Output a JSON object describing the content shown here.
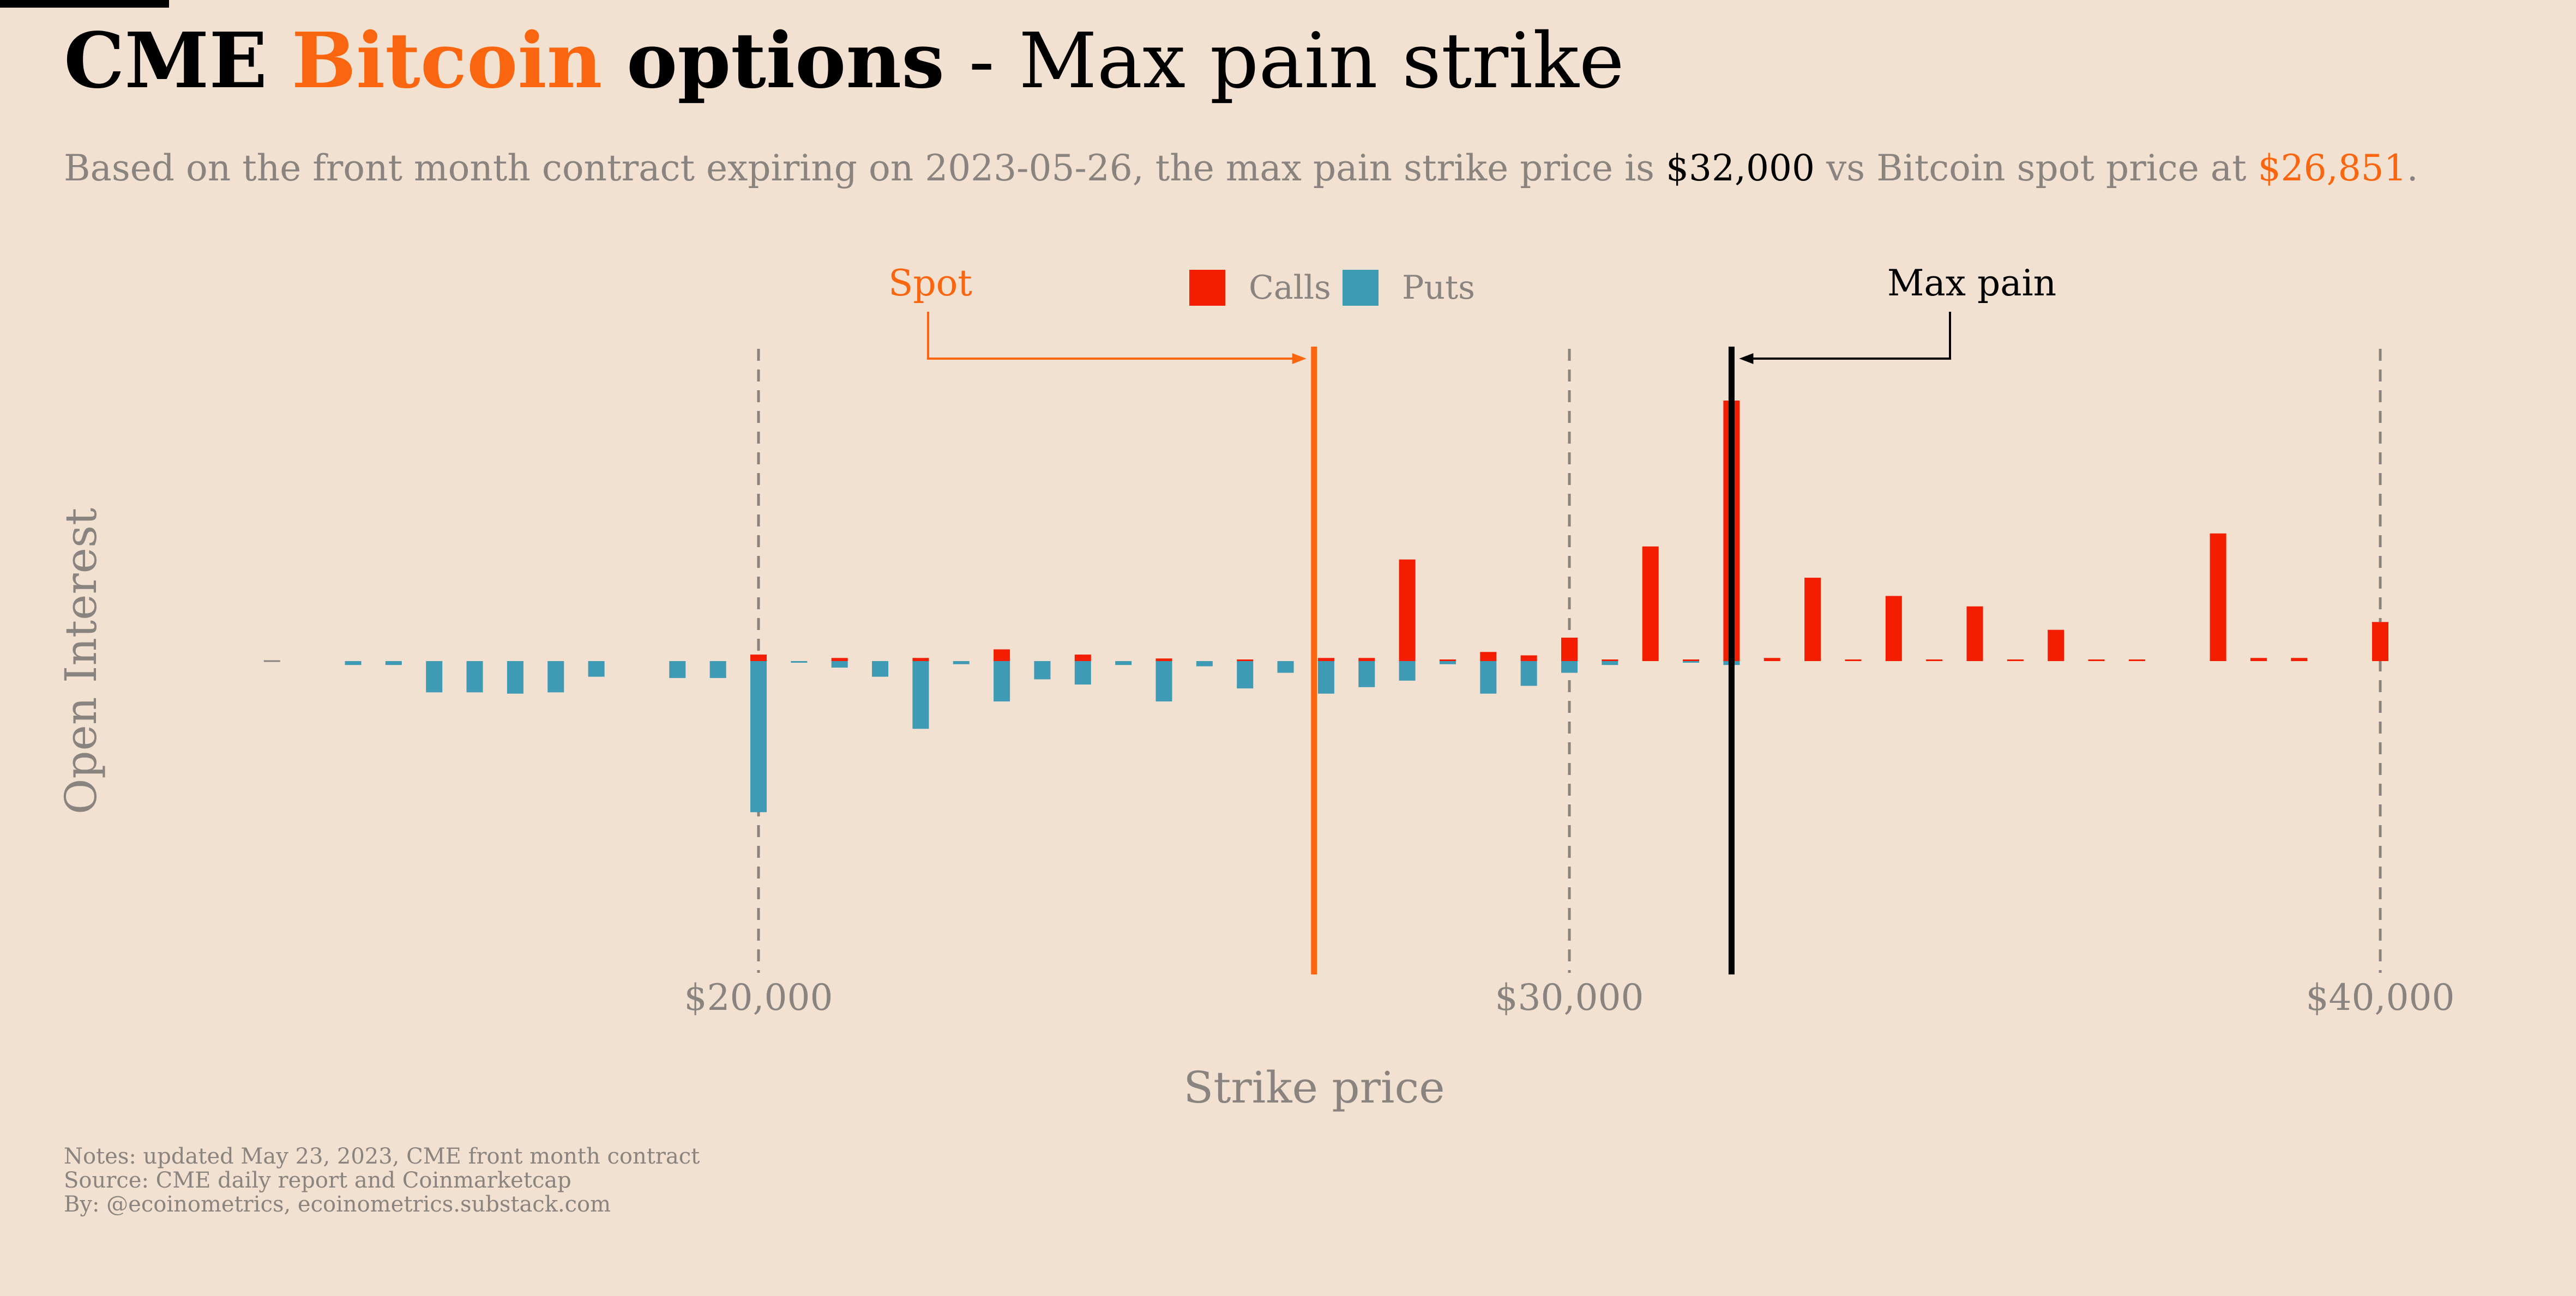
{
  "header": {
    "title_part1": "CME",
    "title_part2": "Bitcoin",
    "title_part3": "options",
    "title_part4": " - Max pain strike",
    "subtitle_a": "Based on the front month contract expiring on 2023-05-26, the max pain strike price is ",
    "subtitle_b": "$32,000",
    "subtitle_c": " vs Bitcoin spot price at ",
    "subtitle_d": "$26,851",
    "subtitle_e": "."
  },
  "notes": {
    "line1": "Notes: updated May 23, 2023, CME front month contract",
    "line2": "Source: CME daily report and Coinmarketcap",
    "line3": "By: @ecoinometrics, ecoinometrics.substack.com"
  },
  "colors": {
    "background": "#f2e0d0",
    "calls": "#f31d00",
    "puts": "#3e9ab5",
    "spot": "#f9660f",
    "max_pain": "#000000",
    "muted": "#8a8480"
  },
  "chart_data": {
    "type": "bar",
    "xlabel": "Strike price",
    "ylabel": "Open Interest",
    "legend": {
      "placement": "top-center",
      "entries": [
        "Calls",
        "Puts"
      ]
    },
    "x_ticks": [
      20000,
      30000,
      40000
    ],
    "x_tick_labels": [
      "$20,000",
      "$30,000",
      "$40,000"
    ],
    "xlim": [
      13000,
      42000
    ],
    "ylim": [
      -115,
      115
    ],
    "grid": "vertical dashed lines at ticks",
    "annotations": {
      "spot": {
        "label": "Spot",
        "value": 26851
      },
      "max_pain": {
        "label": "Max pain",
        "value": 32000
      }
    },
    "strikes": [
      14000,
      15000,
      15500,
      16000,
      16500,
      17000,
      17500,
      18000,
      19000,
      19500,
      20000,
      20500,
      21000,
      21500,
      22000,
      22500,
      23000,
      23500,
      24000,
      24500,
      25000,
      25500,
      26000,
      26500,
      27000,
      27500,
      28000,
      28500,
      29000,
      29500,
      30000,
      30500,
      31000,
      31500,
      32000,
      32500,
      33000,
      33500,
      34000,
      34500,
      35000,
      35500,
      36000,
      36500,
      37000,
      38000,
      38500,
      39000,
      40000
    ],
    "series": [
      {
        "name": "Calls",
        "values": [
          0,
          0,
          0,
          0,
          0,
          0,
          0,
          0,
          0,
          0,
          2.5,
          0,
          1.2,
          0,
          1.2,
          0,
          4.5,
          0,
          2.5,
          0,
          1,
          0,
          0.6,
          0,
          1.2,
          1.2,
          39,
          0.6,
          3.5,
          2.2,
          9,
          0.6,
          44,
          0.6,
          100,
          1.2,
          32,
          0.6,
          25,
          0.6,
          21,
          0.6,
          12,
          0.6,
          0.6,
          49,
          1.2,
          1.2,
          15
        ]
      },
      {
        "name": "Puts",
        "values": [
          0,
          -1.5,
          -1.5,
          -12,
          -12,
          -12.5,
          -12,
          -6,
          -6.5,
          -6.5,
          -58,
          -0.6,
          -2.5,
          -6,
          -26,
          -1.2,
          -15.5,
          -7,
          -9,
          -1.5,
          -15.5,
          -2,
          -10.5,
          -4.5,
          -12.5,
          -10,
          -7.5,
          -1.2,
          -12.5,
          -9.5,
          -4.5,
          -1.5,
          0,
          -0.6,
          -1.5,
          0,
          0,
          0,
          0,
          0,
          0,
          0,
          0,
          0,
          0,
          0,
          0,
          0,
          0
        ]
      }
    ]
  }
}
